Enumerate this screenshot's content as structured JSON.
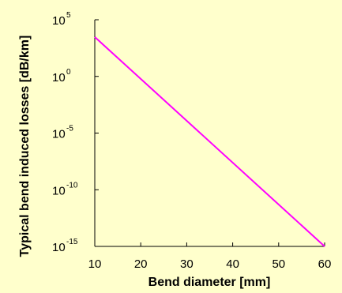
{
  "chart_data": {
    "type": "line",
    "title": "",
    "xlabel": "Bend diameter [mm]",
    "ylabel": "Typical bend induced losses [dB/km]",
    "xlim": [
      10,
      60
    ],
    "ylim": [
      -15,
      5
    ],
    "yscale": "log10",
    "grid": false,
    "x_ticks": [
      "10",
      "20",
      "30",
      "40",
      "50",
      "60"
    ],
    "y_ticks": [
      {
        "base": "10",
        "exp": "5"
      },
      {
        "base": "10",
        "exp": "0"
      },
      {
        "base": "10",
        "exp": "-5"
      },
      {
        "base": "10",
        "exp": "-10"
      },
      {
        "base": "10",
        "exp": "-15"
      }
    ],
    "series": [
      {
        "color": "#FF00FF",
        "x": [
          10,
          60
        ],
        "y": [
          3000,
          1e-15
        ]
      }
    ]
  },
  "colors": {
    "background": "#FFFFCC",
    "axis": "#000000",
    "line": "#FF00FF"
  }
}
